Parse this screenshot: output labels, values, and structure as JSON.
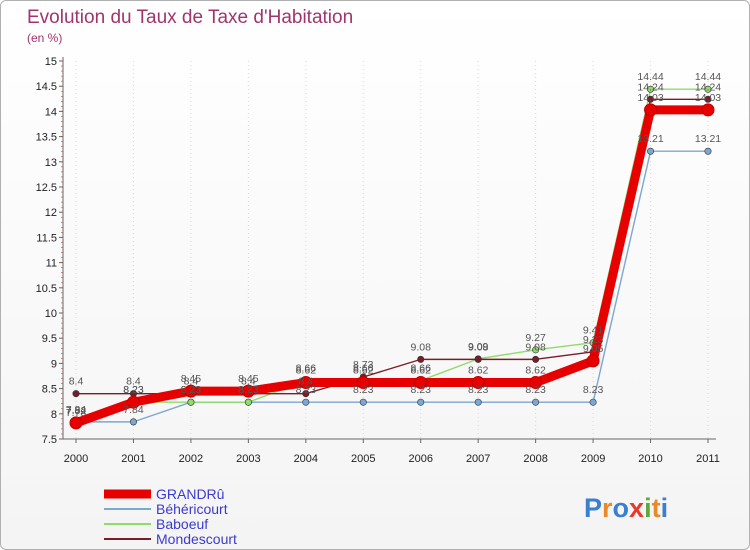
{
  "chart_data": {
    "type": "line",
    "title": "Evolution du Taux de Taxe d'Habitation",
    "unit": "(en %)",
    "xlabel": "",
    "ylabel": "",
    "categories": [
      "2000",
      "2001",
      "2002",
      "2003",
      "2004",
      "2005",
      "2006",
      "2007",
      "2008",
      "2009",
      "2010",
      "2011"
    ],
    "ylim": [
      7.5,
      15
    ],
    "yticks": [
      "7.5",
      "8",
      "8.5",
      "9",
      "9.5",
      "10",
      "10.5",
      "11",
      "11.5",
      "12",
      "12.5",
      "13",
      "13.5",
      "14",
      "14.5",
      "15"
    ],
    "series": [
      {
        "name": "GRANDRû",
        "color": "#e60000",
        "values": [
          7.82,
          8.23,
          8.45,
          8.45,
          8.62,
          8.62,
          8.62,
          8.62,
          8.62,
          9.05,
          14.03,
          14.03
        ]
      },
      {
        "name": "Béhéricourt",
        "color": "#7ba7d3",
        "values": [
          7.84,
          7.84,
          8.23,
          8.23,
          8.23,
          8.23,
          8.23,
          8.23,
          8.23,
          8.23,
          13.21,
          13.21
        ]
      },
      {
        "name": "Baboeuf",
        "color": "#8fdc6b",
        "values": [
          7.78,
          8.23,
          8.23,
          8.23,
          8.66,
          8.66,
          8.66,
          9.09,
          9.27,
          9.41,
          14.44,
          14.44
        ]
      },
      {
        "name": "Mondescourt",
        "color": "#7a1c2a",
        "values": [
          8.4,
          8.4,
          8.4,
          8.4,
          8.4,
          8.73,
          9.08,
          9.08,
          9.08,
          9.23,
          14.24,
          14.24
        ]
      }
    ],
    "data_labels": {
      "GRANDRû": [
        "7.82",
        "8.23",
        "8.45",
        "8.45",
        "8.62",
        "8.62",
        "8.62",
        "8.62",
        "8.62",
        "9.05",
        "14.03",
        "14.03"
      ],
      "Béhéricourt": [
        "7.84",
        "7.84",
        "8.23",
        "8.23",
        "8.23",
        "8.23",
        "8.23",
        "8.23",
        "8.23",
        "8.23",
        "13.21",
        "13.21"
      ],
      "Baboeuf": [
        "7.78",
        "8.23",
        "8.23",
        "8.23",
        "8.66",
        "8.66",
        "8.66",
        "9.09",
        "9.27",
        "9.41",
        "14.44",
        "14.44"
      ],
      "Mondescourt": [
        "8.4",
        "8.4",
        "8.4",
        "8.4",
        "8.4",
        "8.73",
        "9.08",
        "9.08",
        "9.08",
        "9.23",
        "14.24",
        "14.24"
      ]
    },
    "legend_position": "bottom-left"
  },
  "logo": {
    "text": "Proxiti"
  }
}
